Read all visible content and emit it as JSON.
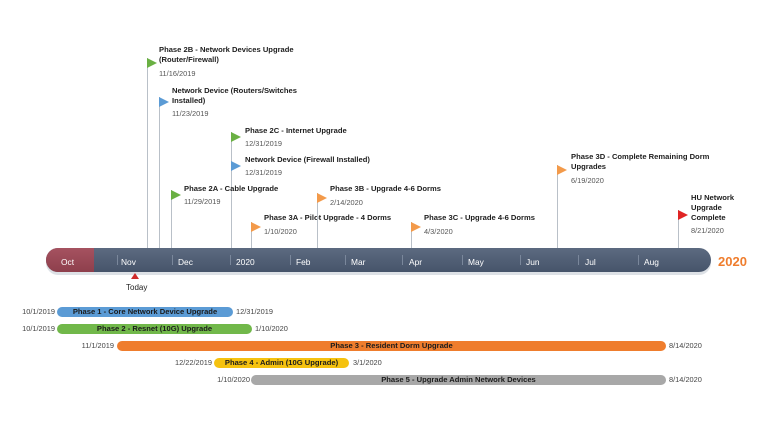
{
  "timeline": {
    "months": [
      "Oct",
      "Nov",
      "Dec",
      "2020",
      "Feb",
      "Mar",
      "Apr",
      "May",
      "Jun",
      "Jul",
      "Aug"
    ],
    "year_end_label": "2020",
    "today_label": "Today",
    "colors": {
      "bar": "#4f5d73",
      "past": "#9b4654",
      "year_label": "#ef7d2d",
      "today_marker": "#cf2b2b"
    }
  },
  "milestones": [
    {
      "title_lines": [
        "Phase 2B - Network Devices Upgrade",
        "(Router/Firewall)"
      ],
      "date": "11/16/2019",
      "color": "#6ab043"
    },
    {
      "title_lines": [
        "Network Device (Routers/Switches",
        "Installed)"
      ],
      "date": "11/23/2019",
      "color": "#5b9bd5"
    },
    {
      "title_lines": [
        "Phase 2C - Internet Upgrade"
      ],
      "date": "12/31/2019",
      "color": "#6ab043"
    },
    {
      "title_lines": [
        "Network Device (Firewall Installed)"
      ],
      "date": "12/31/2019",
      "color": "#5b9bd5"
    },
    {
      "title_lines": [
        "Phase 2A - Cable Upgrade"
      ],
      "date": "11/29/2019",
      "color": "#6ab043"
    },
    {
      "title_lines": [
        "Phase 3A - Pilot Upgrade - 4 Dorms"
      ],
      "date": "1/10/2020",
      "color": "#f39a4a"
    },
    {
      "title_lines": [
        "Phase 3B - Upgrade 4-6 Dorms"
      ],
      "date": "2/14/2020",
      "color": "#f39a4a"
    },
    {
      "title_lines": [
        "Phase 3C - Upgrade 4-6 Dorms"
      ],
      "date": "4/3/2020",
      "color": "#f39a4a"
    },
    {
      "title_lines": [
        "Phase 3D - Complete Remaining Dorm",
        "Upgrades"
      ],
      "date": "6/19/2020",
      "color": "#f39a4a"
    },
    {
      "title_lines": [
        "HU Network",
        "Upgrade",
        "Complete"
      ],
      "date": "8/21/2020",
      "color": "#e02424"
    }
  ],
  "tasks": [
    {
      "label": "Phase 1 - Core Network Device Upgrade",
      "start": "10/1/2019",
      "end": "12/31/2019",
      "color": "#5b9bd5"
    },
    {
      "label": "Phase 2 - Resnet (10G) Upgrade",
      "start": "10/1/2019",
      "end": "1/10/2020",
      "color": "#71b84a"
    },
    {
      "label": "Phase 3 - Resident Dorm Upgrade",
      "start": "11/1/2019",
      "end": "8/14/2020",
      "color": "#ef7d2d"
    },
    {
      "label": "Phase 4 - Admin (10G Upgrade)",
      "start": "12/22/2019",
      "end": "3/1/2020",
      "color": "#f5c20f"
    },
    {
      "label": "Phase 5 - Upgrade Admin Network Devices",
      "start": "1/10/2020",
      "end": "8/14/2020",
      "color": "#a8a8a8"
    }
  ]
}
